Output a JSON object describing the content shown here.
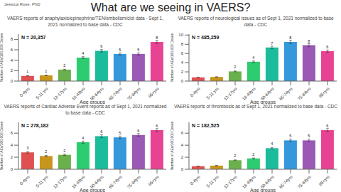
{
  "title": "What are we seeing in VAERS?",
  "annotations": [
    "Jessica Rose, PhD"
  ],
  "chart_data": [
    {
      "type": "bar",
      "title": "VAERS reports of anaphylaxis/epinephrine/TEN/embolism/clot data - Sept 1, 2021 normalized to base data - CDC",
      "annotations": [
        "N = 20,357"
      ],
      "xlabel": "Age groups",
      "ylabel": "Number of AEs/100,000 Doses",
      "categories": [
        "0-4yrs",
        "5-11 yrs",
        "12-17yrs",
        "18-49yrs",
        "50-64yrs",
        "65-74yrs",
        "75-84yrs",
        "85+yrs"
      ],
      "values": [
        1.0,
        1.1,
        2.2,
        4.5,
        5.8,
        5.2,
        5.2,
        7.5
      ],
      "value_labels": [
        "1",
        "1",
        "2",
        "4",
        "6",
        "5",
        "5",
        "8"
      ],
      "errors": [
        0.04,
        0.044,
        0.088,
        0.18,
        0.232,
        0.208,
        0.208,
        0.3
      ],
      "colors": [
        "#e05050",
        "#c8961e",
        "#6ab04c",
        "#2ecc71",
        "#1abc9c",
        "#3498db",
        "#9b59b6",
        "#e84393"
      ],
      "ylim": [
        0,
        9
      ],
      "yticks": [
        0,
        2,
        4,
        6,
        8
      ],
      "grid": false,
      "data_labels": true
    },
    {
      "type": "bar",
      "title": "VAERS reports of neurological issues as of Sept 1, 2021 normalized to base data - CDC",
      "annotations": [
        "N = 485,259"
      ],
      "xlabel": "Age groups",
      "ylabel": "Number of AEs/100,000 Doses",
      "categories": [
        "0-4yrs",
        "5-11 yrs",
        "12-17yrs",
        "18-49yrs",
        "50-64yrs",
        "65-74yrs",
        "75-84yrs",
        "85+yrs"
      ],
      "values": [
        0.8,
        0.9,
        2.1,
        4.2,
        7.3,
        8.5,
        7.8,
        6.5
      ],
      "value_labels": [
        null,
        null,
        "2",
        "4",
        "7",
        "8",
        "8",
        "6"
      ],
      "errors": [
        0.032,
        0.036,
        0.084,
        0.168,
        0.292,
        0.34,
        0.312,
        0.26
      ],
      "colors": [
        "#e05050",
        "#c8961e",
        "#6ab04c",
        "#2ecc71",
        "#1abc9c",
        "#3498db",
        "#9b59b6",
        "#e84393"
      ],
      "ylim": [
        0,
        10.2
      ],
      "yticks": [
        0,
        2,
        4,
        6,
        8,
        10
      ],
      "grid": false,
      "data_labels": true
    },
    {
      "type": "bar",
      "title": "VAERS reports of Cardiac Adverse Event reports as of Sept 1, 2021 normalized to base data - CDC",
      "annotations": [
        "N = 278,182"
      ],
      "xlabel": "Age groups",
      "ylabel": "Number of AEs/100,000 Doses",
      "categories": [
        "0-4yrs",
        "5-11 yrs",
        "12-17yrs",
        "18-49yrs",
        "50-64yrs",
        "65-74yrs",
        "75-84yrs",
        "85+yrs"
      ],
      "values": [
        2.8,
        2.2,
        2.4,
        4.5,
        5.5,
        5.3,
        5.7,
        6.5
      ],
      "value_labels": [
        "3",
        "2",
        "2",
        "4",
        "6",
        "5",
        "6",
        "6"
      ],
      "errors": [
        0.112,
        0.088,
        0.096,
        0.18,
        0.22,
        0.212,
        0.228,
        0.26
      ],
      "colors": [
        "#e05050",
        "#c8961e",
        "#6ab04c",
        "#2ecc71",
        "#1abc9c",
        "#3498db",
        "#9b59b6",
        "#e84393"
      ],
      "ylim": [
        0,
        7.8
      ],
      "yticks": [
        0,
        2,
        4,
        6
      ],
      "grid": false,
      "data_labels": true
    },
    {
      "type": "bar",
      "title": "VAERS reports of thrombosis as of Sept 1, 2021 normalized to base data - CDC",
      "annotations": [
        "N = 182,525"
      ],
      "xlabel": "Age groups",
      "ylabel": "Number of AEs/100,000 Doses",
      "categories": [
        "0-4yrs",
        "5-11 yrs",
        "12-17yrs",
        "18-49yrs",
        "50-64yrs",
        "65-74yrs",
        "75-84yrs",
        "85+yrs"
      ],
      "values": [
        0.5,
        0.6,
        1.5,
        1.8,
        3.5,
        4.8,
        4.8,
        6.5
      ],
      "value_labels": [
        null,
        null,
        "2",
        "2",
        "4",
        "5",
        "5",
        "6"
      ],
      "errors": [
        0.02,
        0.024,
        0.06,
        0.072,
        0.14,
        0.192,
        0.192,
        0.26
      ],
      "colors": [
        "#e05050",
        "#c8961e",
        "#6ab04c",
        "#2ecc71",
        "#1abc9c",
        "#3498db",
        "#9b59b6",
        "#e84393"
      ],
      "ylim": [
        0,
        7.8
      ],
      "yticks": [
        0,
        2,
        4,
        6
      ],
      "grid": false,
      "data_labels": true
    }
  ]
}
